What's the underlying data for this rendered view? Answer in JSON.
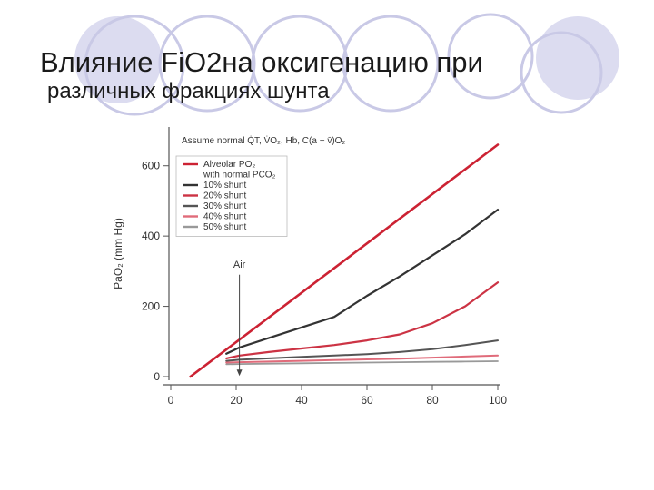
{
  "slide": {
    "title_line1": "Влияние FiO2на оксигенацию при",
    "title_line2": "различных фракциях шунта",
    "deco_ring_color": "#c9c9e6",
    "deco_fill_color": "#dcdcf0"
  },
  "chart_data": {
    "type": "line",
    "assumption": "Assume normal Q̇T, V̇O₂, Hb, C(a − v̄)O₂",
    "xlabel": "",
    "ylabel": "PaO₂ (mm Hg)",
    "xlim": [
      0,
      100
    ],
    "ylim": [
      0,
      700
    ],
    "x_ticks": [
      0,
      20,
      40,
      60,
      80,
      100
    ],
    "y_ticks": [
      0,
      200,
      400,
      600
    ],
    "annotation": {
      "text": "Air",
      "x": 21
    },
    "legend_position": "top-left",
    "series": [
      {
        "name": "Alveolar PO₂",
        "name_line2": "with normal PCO₂",
        "color": "#cc2233",
        "width": 2.6,
        "x": [
          6,
          100
        ],
        "y": [
          0,
          660
        ]
      },
      {
        "name": "10% shunt",
        "color": "#333333",
        "width": 2.2,
        "x": [
          17,
          21,
          30,
          40,
          50,
          60,
          70,
          80,
          90,
          100
        ],
        "y": [
          65,
          83,
          110,
          140,
          170,
          230,
          285,
          345,
          405,
          475
        ]
      },
      {
        "name": "20% shunt",
        "color": "#cc3344",
        "width": 2.2,
        "x": [
          17,
          21,
          30,
          40,
          50,
          60,
          70,
          80,
          90,
          100
        ],
        "y": [
          52,
          60,
          70,
          80,
          90,
          103,
          120,
          152,
          200,
          268
        ]
      },
      {
        "name": "30% shunt",
        "color": "#555555",
        "width": 2.0,
        "x": [
          17,
          21,
          30,
          40,
          50,
          60,
          70,
          80,
          90,
          100
        ],
        "y": [
          45,
          48,
          52,
          56,
          60,
          64,
          70,
          78,
          90,
          103
        ]
      },
      {
        "name": "40% shunt",
        "color": "#e06b7a",
        "width": 2.0,
        "x": [
          17,
          21,
          30,
          40,
          50,
          60,
          70,
          80,
          90,
          100
        ],
        "y": [
          40,
          41,
          43,
          45,
          47,
          49,
          51,
          54,
          57,
          60
        ]
      },
      {
        "name": "50% shunt",
        "color": "#999999",
        "width": 1.8,
        "x": [
          17,
          21,
          30,
          40,
          50,
          60,
          70,
          80,
          90,
          100
        ],
        "y": [
          35,
          36,
          37,
          38,
          39,
          40,
          41,
          42,
          43,
          44
        ]
      }
    ]
  }
}
